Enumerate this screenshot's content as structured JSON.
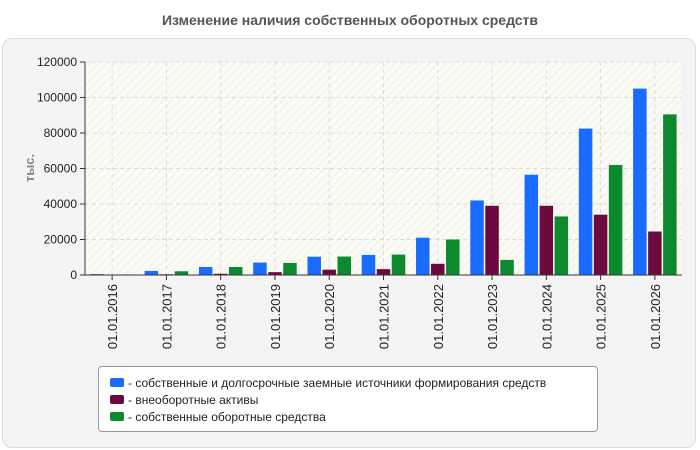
{
  "chart_data": {
    "type": "bar",
    "title": "Изменение наличия собственных оборотных средств",
    "xlabel": "",
    "ylabel": "тыс.",
    "categories": [
      "01.01.2016",
      "01.01.2017",
      "01.01.2018",
      "01.01.2019",
      "01.01.2020",
      "01.01.2021",
      "01.01.2022",
      "01.01.2023",
      "01.01.2024",
      "01.01.2025",
      "01.01.2026"
    ],
    "ylim": [
      0,
      120000
    ],
    "yticks": [
      "0",
      "20000",
      "40000",
      "60000",
      "80000",
      "100000",
      "120000"
    ],
    "grid": true,
    "legend_position": "bottom",
    "series": [
      {
        "name": "собственные и долгосрочные заемные источники формирования средств",
        "color": "#1a6bff",
        "values": [
          500,
          2300,
          4500,
          7000,
          10300,
          11300,
          21000,
          42000,
          56500,
          82500,
          105000
        ]
      },
      {
        "name": "внеоборотные активы",
        "color": "#6b0a3c",
        "values": [
          200,
          400,
          700,
          1600,
          3000,
          3300,
          6300,
          39000,
          39000,
          34000,
          24500
        ]
      },
      {
        "name": "собственные оборотные средства",
        "color": "#0d8a2e",
        "values": [
          300,
          2100,
          4500,
          6800,
          10400,
          11500,
          20000,
          8500,
          33000,
          62000,
          90500
        ]
      }
    ]
  }
}
